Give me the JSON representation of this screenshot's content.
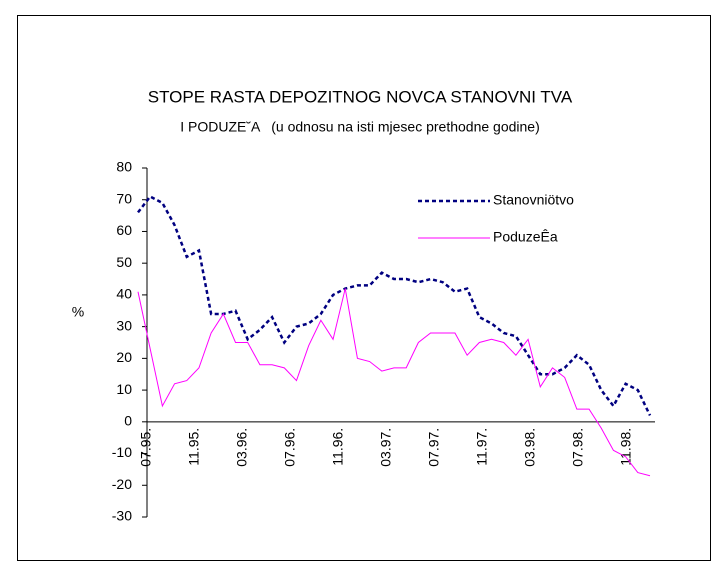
{
  "chart_data": {
    "type": "line",
    "title": "STOPE RASTA DEPOZITNOG NOVCA STANOVNI TVA",
    "subtitle": "I PODUZE˘A   (u odnosu na isti mjesec prethodne godine)",
    "ylabel": "%",
    "categories": [
      "07.95.",
      null,
      null,
      null,
      "11.95.",
      null,
      null,
      null,
      "03.96.",
      null,
      null,
      null,
      "07.96.",
      null,
      null,
      null,
      "11.96.",
      null,
      null,
      null,
      "03.97.",
      null,
      null,
      null,
      "07.97.",
      null,
      null,
      null,
      "11.97.",
      null,
      null,
      null,
      "03.98.",
      null,
      null,
      null,
      "07.98.",
      null,
      null,
      null,
      "11.98.",
      null,
      null
    ],
    "series": [
      {
        "name": "Stanovniötvo",
        "color": "#000080",
        "dashed": true,
        "values": [
          66,
          71,
          69,
          62,
          52,
          54,
          34,
          34,
          35,
          26,
          29,
          33,
          25,
          30,
          31,
          34,
          40,
          42,
          43,
          43,
          47,
          45,
          45,
          44,
          45,
          44,
          41,
          42,
          33,
          31,
          28,
          27,
          21,
          15,
          15,
          17,
          21,
          18,
          10,
          5,
          12,
          10,
          2
        ]
      },
      {
        "name": "PoduzeÊa",
        "color": "#ff00ff",
        "dashed": false,
        "values": [
          41,
          23,
          5,
          12,
          13,
          17,
          28,
          34,
          25,
          25,
          18,
          18,
          17,
          13,
          24,
          32,
          26,
          42,
          20,
          19,
          16,
          17,
          17,
          25,
          28,
          28,
          28,
          21,
          25,
          26,
          25,
          21,
          26,
          11,
          17,
          14,
          4,
          4,
          -2,
          -9,
          -11,
          -16,
          -17
        ]
      }
    ],
    "ylim": [
      -30,
      80
    ],
    "yticks": [
      -30,
      -20,
      -10,
      0,
      10,
      20,
      30,
      40,
      50,
      60,
      70,
      80
    ]
  }
}
